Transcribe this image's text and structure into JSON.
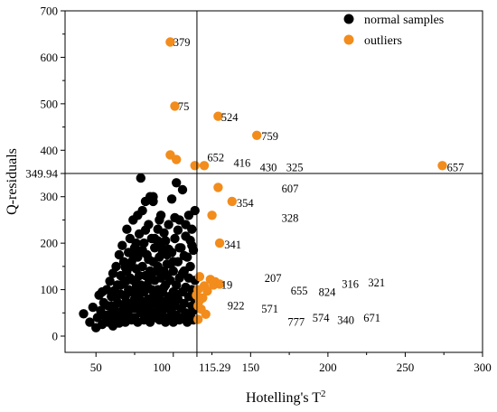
{
  "chart_data": {
    "type": "scatter",
    "xlabel": "Hotelling's T",
    "xlabel_sup": "2",
    "ylabel": "Q-residuals",
    "xlim": [
      30,
      300
    ],
    "ylim": [
      -35,
      700
    ],
    "xticks": [
      50,
      100,
      150,
      200,
      250,
      300
    ],
    "yticks": [
      0,
      100,
      200,
      300,
      400,
      500,
      600,
      700
    ],
    "grid": false,
    "legend_position": "top-right",
    "colors": {
      "normal": "#000000",
      "outlier": "#f28c1c"
    },
    "reference_lines": {
      "t2_limit": 115.29,
      "t2_limit_label": "115.29",
      "q_limit": 349.94,
      "q_limit_label": "349.94"
    },
    "series": [
      {
        "name": "normal samples",
        "color": "#000000",
        "points": [
          [
            42,
            48
          ],
          [
            46,
            30
          ],
          [
            48,
            62
          ],
          [
            50,
            18
          ],
          [
            51,
            40
          ],
          [
            52,
            88
          ],
          [
            53,
            55
          ],
          [
            54,
            25
          ],
          [
            55,
            72
          ],
          [
            56,
            42
          ],
          [
            57,
            100
          ],
          [
            58,
            30
          ],
          [
            58,
            65
          ],
          [
            59,
            118
          ],
          [
            60,
            48
          ],
          [
            60,
            85
          ],
          [
            61,
            22
          ],
          [
            61,
            135
          ],
          [
            62,
            58
          ],
          [
            62,
            98
          ],
          [
            63,
            35
          ],
          [
            63,
            150
          ],
          [
            64,
            72
          ],
          [
            64,
            110
          ],
          [
            65,
            28
          ],
          [
            65,
            175
          ],
          [
            66,
            52
          ],
          [
            66,
            90
          ],
          [
            66,
            130
          ],
          [
            67,
            40
          ],
          [
            67,
            195
          ],
          [
            68,
            68
          ],
          [
            68,
            115
          ],
          [
            68,
            160
          ],
          [
            69,
            30
          ],
          [
            69,
            85
          ],
          [
            70,
            55
          ],
          [
            70,
            140
          ],
          [
            70,
            230
          ],
          [
            71,
            100
          ],
          [
            71,
            45
          ],
          [
            71,
            180
          ],
          [
            72,
            70
          ],
          [
            72,
            125
          ],
          [
            72,
            210
          ],
          [
            73,
            35
          ],
          [
            73,
            95
          ],
          [
            73,
            160
          ],
          [
            74,
            60
          ],
          [
            74,
            250
          ],
          [
            74,
            120
          ],
          [
            75,
            80
          ],
          [
            75,
            40
          ],
          [
            75,
            190
          ],
          [
            76,
            145
          ],
          [
            76,
            105
          ],
          [
            76,
            60
          ],
          [
            77,
            260
          ],
          [
            77,
            30
          ],
          [
            77,
            170
          ],
          [
            78,
            90
          ],
          [
            78,
            130
          ],
          [
            78,
            220
          ],
          [
            79,
            50
          ],
          [
            79,
            340
          ],
          [
            79,
            110
          ],
          [
            80,
            75
          ],
          [
            80,
            150
          ],
          [
            80,
            270
          ],
          [
            81,
            35
          ],
          [
            81,
            95
          ],
          [
            81,
            200
          ],
          [
            82,
            60
          ],
          [
            82,
            130
          ],
          [
            82,
            290
          ],
          [
            83,
            45
          ],
          [
            83,
            110
          ],
          [
            83,
            175
          ],
          [
            84,
            80
          ],
          [
            84,
            240
          ],
          [
            85,
            30
          ],
          [
            85,
            140
          ],
          [
            85,
            65
          ],
          [
            86,
            100
          ],
          [
            86,
            210
          ],
          [
            86,
            50
          ],
          [
            87,
            160
          ],
          [
            87,
            85
          ],
          [
            87,
            300
          ],
          [
            88,
            40
          ],
          [
            88,
            120
          ],
          [
            88,
            190
          ],
          [
            89,
            70
          ],
          [
            89,
            140
          ],
          [
            90,
            55
          ],
          [
            90,
            230
          ],
          [
            90,
            100
          ],
          [
            91,
            35
          ],
          [
            91,
            170
          ],
          [
            91,
            80
          ],
          [
            92,
            125
          ],
          [
            92,
            60
          ],
          [
            92,
            260
          ],
          [
            93,
            95
          ],
          [
            93,
            45
          ],
          [
            93,
            180
          ],
          [
            94,
            75
          ],
          [
            94,
            140
          ],
          [
            95,
            30
          ],
          [
            95,
            110
          ],
          [
            95,
            205
          ],
          [
            96,
            60
          ],
          [
            96,
            155
          ],
          [
            97,
            85
          ],
          [
            97,
            40
          ],
          [
            97,
            240
          ],
          [
            98,
            120
          ],
          [
            98,
            70
          ],
          [
            99,
            50
          ],
          [
            99,
            180
          ],
          [
            99,
            295
          ],
          [
            100,
            95
          ],
          [
            100,
            30
          ],
          [
            100,
            140
          ],
          [
            101,
            65
          ],
          [
            101,
            210
          ],
          [
            102,
            110
          ],
          [
            102,
            45
          ],
          [
            102,
            330
          ],
          [
            103,
            80
          ],
          [
            103,
            160
          ],
          [
            104,
            35
          ],
          [
            104,
            125
          ],
          [
            104,
            250
          ],
          [
            105,
            60
          ],
          [
            105,
            190
          ],
          [
            106,
            95
          ],
          [
            106,
            40
          ],
          [
            106,
            315
          ],
          [
            107,
            140
          ],
          [
            107,
            70
          ],
          [
            108,
            50
          ],
          [
            108,
            215
          ],
          [
            108,
            105
          ],
          [
            109,
            30
          ],
          [
            109,
            170
          ],
          [
            110,
            85
          ],
          [
            110,
            125
          ],
          [
            110,
            260
          ],
          [
            111,
            45
          ],
          [
            111,
            150
          ],
          [
            112,
            65
          ],
          [
            112,
            100
          ],
          [
            112,
            230
          ],
          [
            113,
            35
          ],
          [
            113,
            185
          ],
          [
            114,
            80
          ],
          [
            114,
            120
          ],
          [
            114,
            270
          ],
          [
            113,
            55
          ],
          [
            76,
            200
          ],
          [
            80,
            185
          ],
          [
            84,
            165
          ],
          [
            88,
            210
          ],
          [
            92,
            195
          ],
          [
            96,
            175
          ],
          [
            100,
            160
          ],
          [
            104,
            190
          ],
          [
            72,
            150
          ],
          [
            66,
            110
          ],
          [
            70,
            120
          ],
          [
            74,
            95
          ],
          [
            78,
            70
          ],
          [
            82,
            100
          ],
          [
            86,
            135
          ],
          [
            90,
            150
          ],
          [
            94,
            105
          ],
          [
            98,
            155
          ],
          [
            102,
            90
          ],
          [
            106,
            135
          ],
          [
            64,
            90
          ],
          [
            68,
            60
          ],
          [
            72,
            40
          ],
          [
            76,
            115
          ],
          [
            80,
            55
          ],
          [
            84,
            125
          ],
          [
            88,
            95
          ],
          [
            92,
            75
          ],
          [
            96,
            130
          ],
          [
            100,
            80
          ],
          [
            60,
            65
          ],
          [
            62,
            40
          ],
          [
            85,
            300
          ],
          [
            87,
            290
          ],
          [
            91,
            250
          ],
          [
            101,
            255
          ],
          [
            108,
            240
          ],
          [
            112,
            195
          ],
          [
            54,
            95
          ],
          [
            57,
            45
          ],
          [
            78,
            178
          ],
          [
            82,
            228
          ],
          [
            90,
            205
          ],
          [
            94,
            222
          ],
          [
            97,
            187
          ],
          [
            103,
            228
          ],
          [
            107,
            173
          ],
          [
            111,
            206
          ],
          [
            69,
            148
          ],
          [
            73,
            178
          ]
        ]
      },
      {
        "name": "outliers",
        "color": "#f28c1c",
        "points": [
          [
            98,
            633
          ],
          [
            101,
            495
          ],
          [
            129,
            473
          ],
          [
            154,
            432
          ],
          [
            98,
            390
          ],
          [
            102,
            380
          ],
          [
            114,
            367
          ],
          [
            120,
            367
          ],
          [
            274,
            367
          ],
          [
            129,
            320
          ],
          [
            138,
            290
          ],
          [
            125,
            260
          ],
          [
            130,
            200
          ],
          [
            117,
            128
          ],
          [
            124,
            122
          ],
          [
            127,
            117
          ],
          [
            130,
            112
          ],
          [
            116,
            100
          ],
          [
            122,
            97
          ],
          [
            115,
            88
          ],
          [
            117,
            77
          ],
          [
            116,
            65
          ],
          [
            121,
            47
          ],
          [
            116,
            36
          ],
          [
            120,
            108
          ],
          [
            118,
            58
          ],
          [
            119,
            82
          ],
          [
            126,
            110
          ]
        ]
      }
    ],
    "annotations": [
      {
        "text": "379",
        "x": 100,
        "y": 633
      },
      {
        "text": "75",
        "x": 103,
        "y": 495
      },
      {
        "text": "524",
        "x": 131,
        "y": 472
      },
      {
        "text": "759",
        "x": 157,
        "y": 431
      },
      {
        "text": "652",
        "x": 122,
        "y": 385
      },
      {
        "text": "416",
        "x": 139,
        "y": 373
      },
      {
        "text": "430",
        "x": 156,
        "y": 364
      },
      {
        "text": "325",
        "x": 173,
        "y": 364
      },
      {
        "text": "657",
        "x": 277,
        "y": 364
      },
      {
        "text": "607",
        "x": 170,
        "y": 318
      },
      {
        "text": "354",
        "x": 141,
        "y": 287
      },
      {
        "text": "328",
        "x": 170,
        "y": 255
      },
      {
        "text": "341",
        "x": 133,
        "y": 197
      },
      {
        "text": "19",
        "x": 131,
        "y": 111
      },
      {
        "text": "207",
        "x": 159,
        "y": 125
      },
      {
        "text": "655",
        "x": 176,
        "y": 98
      },
      {
        "text": "824",
        "x": 194,
        "y": 95
      },
      {
        "text": "316",
        "x": 209,
        "y": 113
      },
      {
        "text": "321",
        "x": 226,
        "y": 116
      },
      {
        "text": "922",
        "x": 135,
        "y": 66
      },
      {
        "text": "571",
        "x": 157,
        "y": 59
      },
      {
        "text": "777",
        "x": 174,
        "y": 31
      },
      {
        "text": "574",
        "x": 190,
        "y": 40
      },
      {
        "text": "340",
        "x": 206,
        "y": 35
      },
      {
        "text": "671",
        "x": 223,
        "y": 40
      }
    ]
  }
}
